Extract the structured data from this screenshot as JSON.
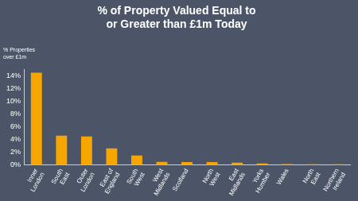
{
  "chart_data": {
    "type": "bar",
    "title": [
      "% of Property Valued Equal to",
      "or Greater than £1m Today"
    ],
    "ylabel": [
      "% Properties",
      "over £1m"
    ],
    "categories": [
      "Inner London",
      "South East",
      "Outer London",
      "East of England",
      "South West",
      "West Midlands",
      "Scotland",
      "North West",
      "East Midlands",
      "Yorks Humber",
      "Wales",
      "North East",
      "Northern Ireland"
    ],
    "values": [
      14.5,
      4.6,
      4.5,
      2.6,
      1.5,
      0.5,
      0.45,
      0.45,
      0.35,
      0.25,
      0.15,
      0.1,
      0.1
    ],
    "color": "#f7a600",
    "ylim": [
      0,
      15
    ],
    "yticks": [
      {
        "value": 0,
        "label": "0%"
      },
      {
        "value": 2,
        "label": "2%"
      },
      {
        "value": 4,
        "label": "4%"
      },
      {
        "value": 6,
        "label": "6%"
      },
      {
        "value": 8,
        "label": "8%"
      },
      {
        "value": 10,
        "label": "10%"
      },
      {
        "value": 12,
        "label": "12%"
      },
      {
        "value": 14,
        "label": "14%"
      }
    ],
    "grid": false
  }
}
